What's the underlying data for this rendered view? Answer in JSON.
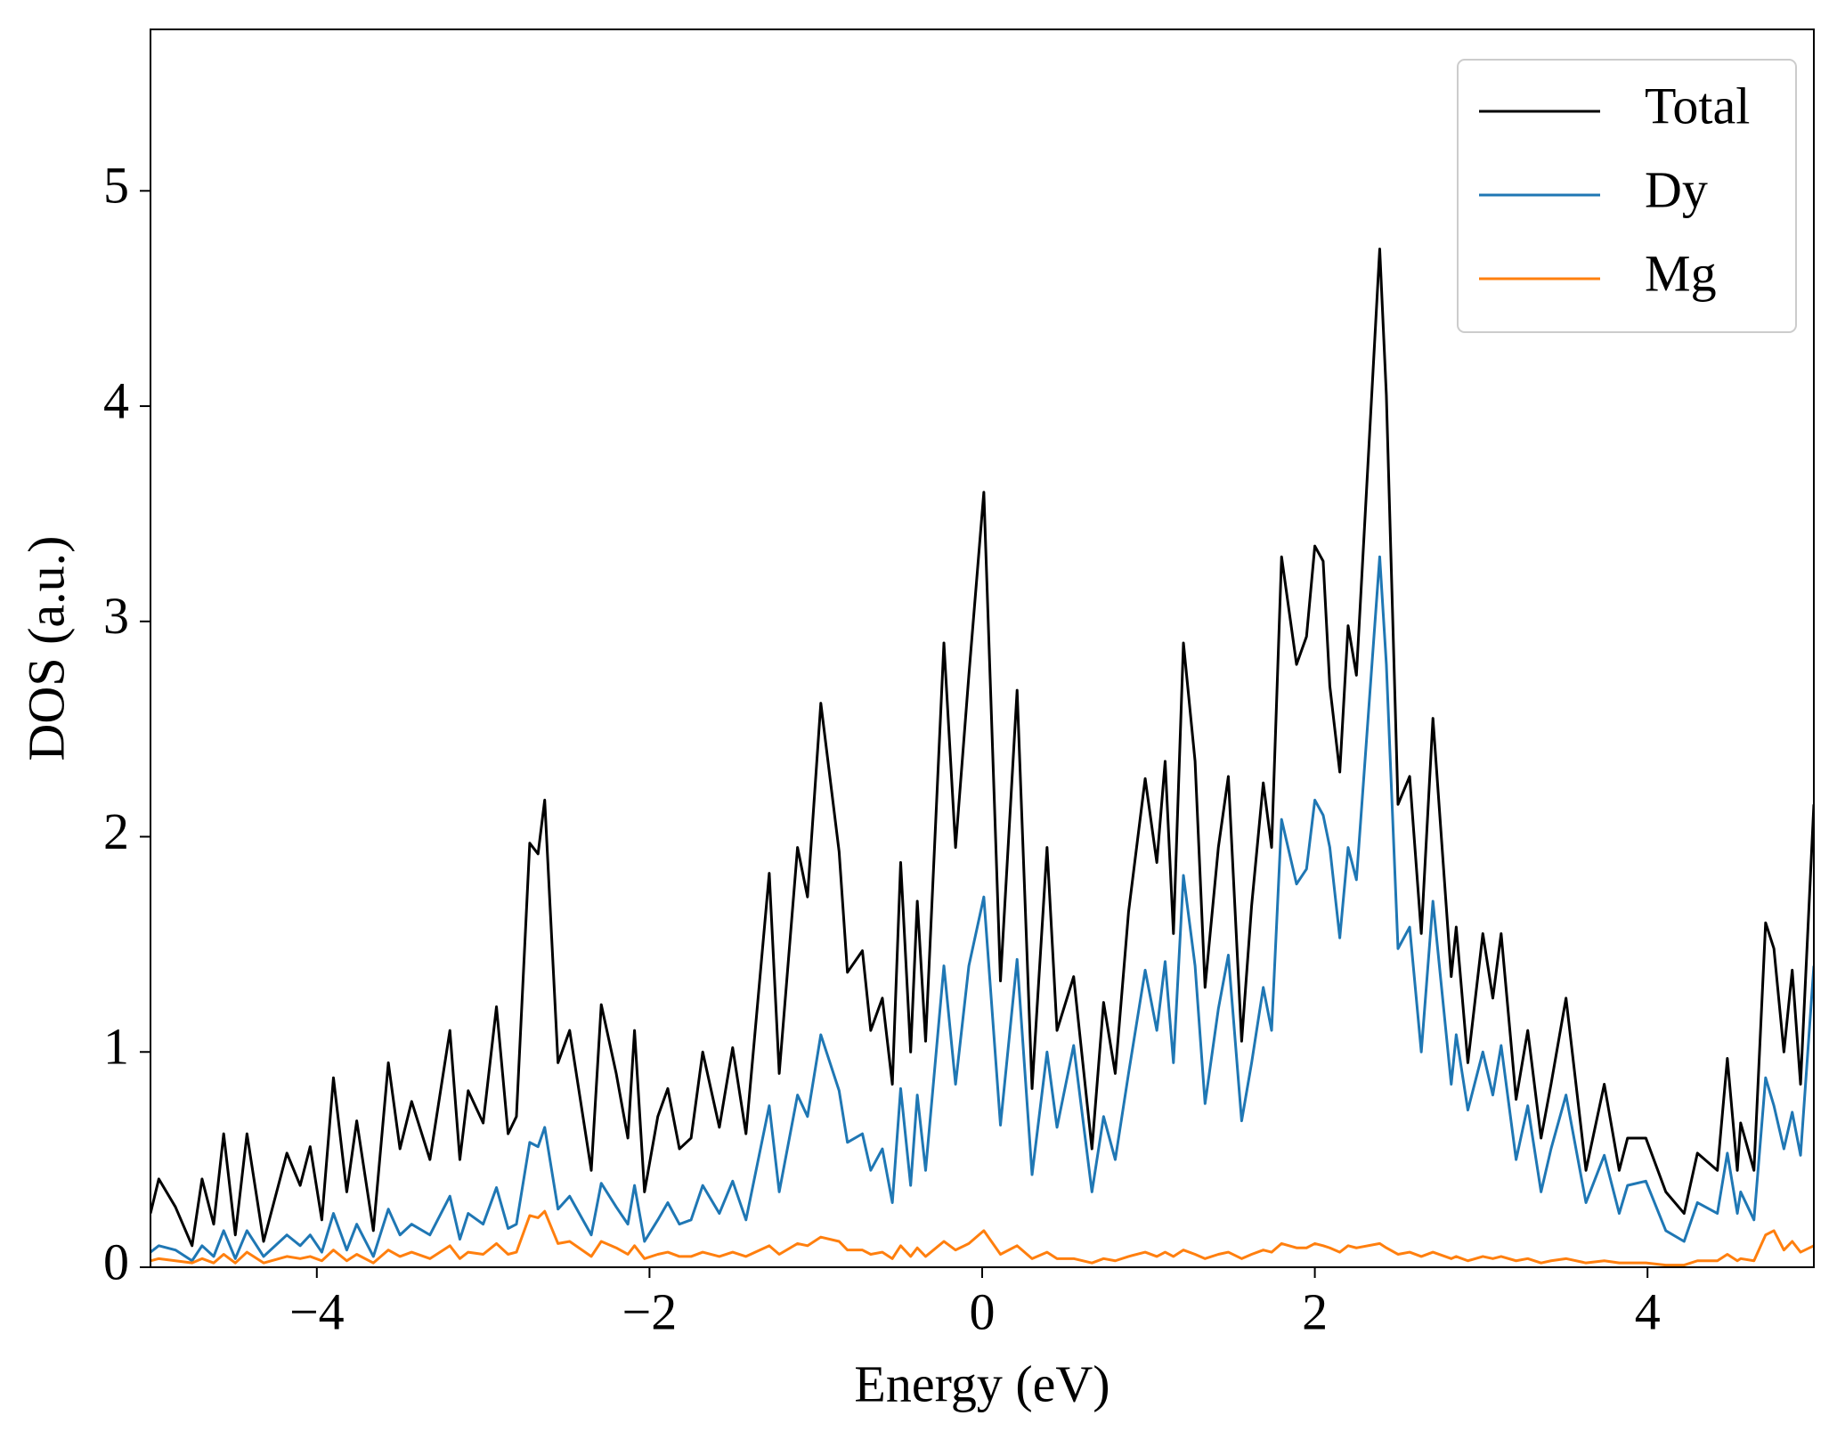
{
  "chart_data": {
    "type": "line",
    "x_label": "Energy (eV)",
    "y_label": "DOS (a.u.)",
    "xlim": [
      -5,
      5
    ],
    "ylim": [
      0,
      5.75
    ],
    "xticks": [
      {
        "value": -4,
        "label": "−4"
      },
      {
        "value": -2,
        "label": "−2"
      },
      0,
      2,
      4
    ],
    "yticks": [
      0,
      1,
      2,
      3,
      4,
      5
    ],
    "grid": false,
    "legend": "upper right",
    "x": [
      -5,
      -4.95,
      -4.85,
      -4.75,
      -4.69,
      -4.62,
      -4.56,
      -4.49,
      -4.42,
      -4.32,
      -4.18,
      -4.1,
      -4.04,
      -3.97,
      -3.9,
      -3.82,
      -3.76,
      -3.66,
      -3.57,
      -3.5,
      -3.43,
      -3.32,
      -3.2,
      -3.14,
      -3.09,
      -3.0,
      -2.92,
      -2.85,
      -2.8,
      -2.72,
      -2.67,
      -2.63,
      -2.55,
      -2.48,
      -2.35,
      -2.29,
      -2.2,
      -2.13,
      -2.09,
      -2.03,
      -1.95,
      -1.89,
      -1.82,
      -1.75,
      -1.68,
      -1.58,
      -1.5,
      -1.42,
      -1.28,
      -1.22,
      -1.11,
      -1.05,
      -0.97,
      -0.86,
      -0.81,
      -0.72,
      -0.67,
      -0.6,
      -0.54,
      -0.49,
      -0.43,
      -0.39,
      -0.34,
      -0.23,
      -0.16,
      -0.08,
      0.01,
      0.11,
      0.21,
      0.3,
      0.39,
      0.45,
      0.55,
      0.66,
      0.73,
      0.8,
      0.88,
      0.98,
      1.05,
      1.1,
      1.15,
      1.21,
      1.28,
      1.34,
      1.42,
      1.48,
      1.56,
      1.62,
      1.69,
      1.74,
      1.8,
      1.89,
      1.95,
      2.0,
      2.05,
      2.09,
      2.15,
      2.2,
      2.25,
      2.39,
      2.43,
      2.5,
      2.57,
      2.64,
      2.71,
      2.82,
      2.85,
      2.92,
      3.01,
      3.07,
      3.12,
      3.21,
      3.28,
      3.36,
      3.42,
      3.51,
      3.63,
      3.74,
      3.83,
      3.88,
      3.99,
      4.11,
      4.22,
      4.3,
      4.42,
      4.48,
      4.54,
      4.56,
      4.64,
      4.71,
      4.76,
      4.82,
      4.87,
      4.92,
      5.0
    ],
    "series": [
      {
        "name": "Total",
        "color": "#000000",
        "values": [
          0.25,
          0.41,
          0.28,
          0.1,
          0.41,
          0.2,
          0.62,
          0.15,
          0.62,
          0.12,
          0.53,
          0.38,
          0.56,
          0.22,
          0.88,
          0.35,
          0.68,
          0.17,
          0.95,
          0.55,
          0.77,
          0.5,
          1.1,
          0.5,
          0.82,
          0.67,
          1.21,
          0.62,
          0.7,
          1.97,
          1.92,
          2.17,
          0.95,
          1.1,
          0.45,
          1.22,
          0.9,
          0.6,
          1.1,
          0.35,
          0.7,
          0.83,
          0.55,
          0.6,
          1.0,
          0.65,
          1.02,
          0.62,
          1.83,
          0.9,
          1.95,
          1.72,
          2.62,
          1.93,
          1.37,
          1.47,
          1.1,
          1.25,
          0.85,
          1.88,
          1.0,
          1.7,
          1.05,
          2.9,
          1.95,
          2.75,
          3.6,
          1.33,
          2.68,
          0.83,
          1.95,
          1.1,
          1.35,
          0.55,
          1.23,
          0.9,
          1.65,
          2.27,
          1.88,
          2.35,
          1.55,
          2.9,
          2.35,
          1.3,
          1.95,
          2.28,
          1.05,
          1.68,
          2.25,
          1.95,
          3.3,
          2.8,
          2.93,
          3.35,
          3.28,
          2.7,
          2.3,
          2.98,
          2.75,
          4.73,
          4.05,
          2.15,
          2.28,
          1.55,
          2.55,
          1.35,
          1.58,
          0.95,
          1.55,
          1.25,
          1.55,
          0.78,
          1.1,
          0.6,
          0.85,
          1.25,
          0.45,
          0.85,
          0.45,
          0.6,
          0.6,
          0.35,
          0.25,
          0.53,
          0.45,
          0.97,
          0.45,
          0.67,
          0.45,
          1.6,
          1.48,
          1.0,
          1.38,
          0.85,
          2.15
        ]
      },
      {
        "name": "Dy",
        "color": "#1f77b4",
        "values": [
          0.07,
          0.1,
          0.08,
          0.03,
          0.1,
          0.05,
          0.17,
          0.04,
          0.17,
          0.05,
          0.15,
          0.1,
          0.15,
          0.07,
          0.25,
          0.08,
          0.2,
          0.05,
          0.27,
          0.15,
          0.2,
          0.15,
          0.33,
          0.13,
          0.25,
          0.2,
          0.37,
          0.18,
          0.2,
          0.58,
          0.56,
          0.65,
          0.27,
          0.33,
          0.15,
          0.39,
          0.28,
          0.2,
          0.38,
          0.12,
          0.22,
          0.3,
          0.2,
          0.22,
          0.38,
          0.25,
          0.4,
          0.22,
          0.75,
          0.35,
          0.8,
          0.7,
          1.08,
          0.82,
          0.58,
          0.62,
          0.45,
          0.55,
          0.3,
          0.83,
          0.38,
          0.8,
          0.45,
          1.4,
          0.85,
          1.4,
          1.72,
          0.66,
          1.43,
          0.43,
          1.0,
          0.65,
          1.03,
          0.35,
          0.7,
          0.5,
          0.9,
          1.38,
          1.1,
          1.42,
          0.95,
          1.82,
          1.4,
          0.76,
          1.2,
          1.45,
          0.68,
          0.95,
          1.3,
          1.1,
          2.08,
          1.78,
          1.85,
          2.17,
          2.1,
          1.95,
          1.53,
          1.95,
          1.8,
          3.3,
          2.8,
          1.48,
          1.58,
          1.0,
          1.7,
          0.85,
          1.08,
          0.73,
          1.0,
          0.8,
          1.03,
          0.5,
          0.75,
          0.35,
          0.55,
          0.8,
          0.3,
          0.52,
          0.25,
          0.38,
          0.4,
          0.17,
          0.12,
          0.3,
          0.25,
          0.53,
          0.25,
          0.35,
          0.22,
          0.88,
          0.75,
          0.55,
          0.72,
          0.52,
          1.4
        ]
      },
      {
        "name": "Mg",
        "color": "#ff7f0e",
        "values": [
          0.03,
          0.04,
          0.03,
          0.02,
          0.04,
          0.02,
          0.06,
          0.02,
          0.07,
          0.02,
          0.05,
          0.04,
          0.05,
          0.03,
          0.08,
          0.03,
          0.06,
          0.02,
          0.08,
          0.05,
          0.07,
          0.04,
          0.1,
          0.04,
          0.07,
          0.06,
          0.11,
          0.06,
          0.07,
          0.24,
          0.23,
          0.26,
          0.11,
          0.12,
          0.05,
          0.12,
          0.09,
          0.06,
          0.1,
          0.04,
          0.06,
          0.07,
          0.05,
          0.05,
          0.07,
          0.05,
          0.07,
          0.05,
          0.1,
          0.06,
          0.11,
          0.1,
          0.14,
          0.12,
          0.08,
          0.08,
          0.06,
          0.07,
          0.04,
          0.1,
          0.05,
          0.09,
          0.05,
          0.12,
          0.08,
          0.11,
          0.17,
          0.06,
          0.1,
          0.04,
          0.07,
          0.04,
          0.04,
          0.02,
          0.04,
          0.03,
          0.05,
          0.07,
          0.05,
          0.07,
          0.05,
          0.08,
          0.06,
          0.04,
          0.06,
          0.07,
          0.04,
          0.06,
          0.08,
          0.07,
          0.11,
          0.09,
          0.09,
          0.11,
          0.1,
          0.09,
          0.07,
          0.1,
          0.09,
          0.11,
          0.09,
          0.06,
          0.07,
          0.05,
          0.07,
          0.04,
          0.05,
          0.03,
          0.05,
          0.04,
          0.05,
          0.03,
          0.04,
          0.02,
          0.03,
          0.04,
          0.02,
          0.03,
          0.02,
          0.02,
          0.02,
          0.01,
          0.01,
          0.03,
          0.03,
          0.06,
          0.03,
          0.04,
          0.03,
          0.15,
          0.17,
          0.08,
          0.12,
          0.07,
          0.1
        ]
      }
    ]
  }
}
